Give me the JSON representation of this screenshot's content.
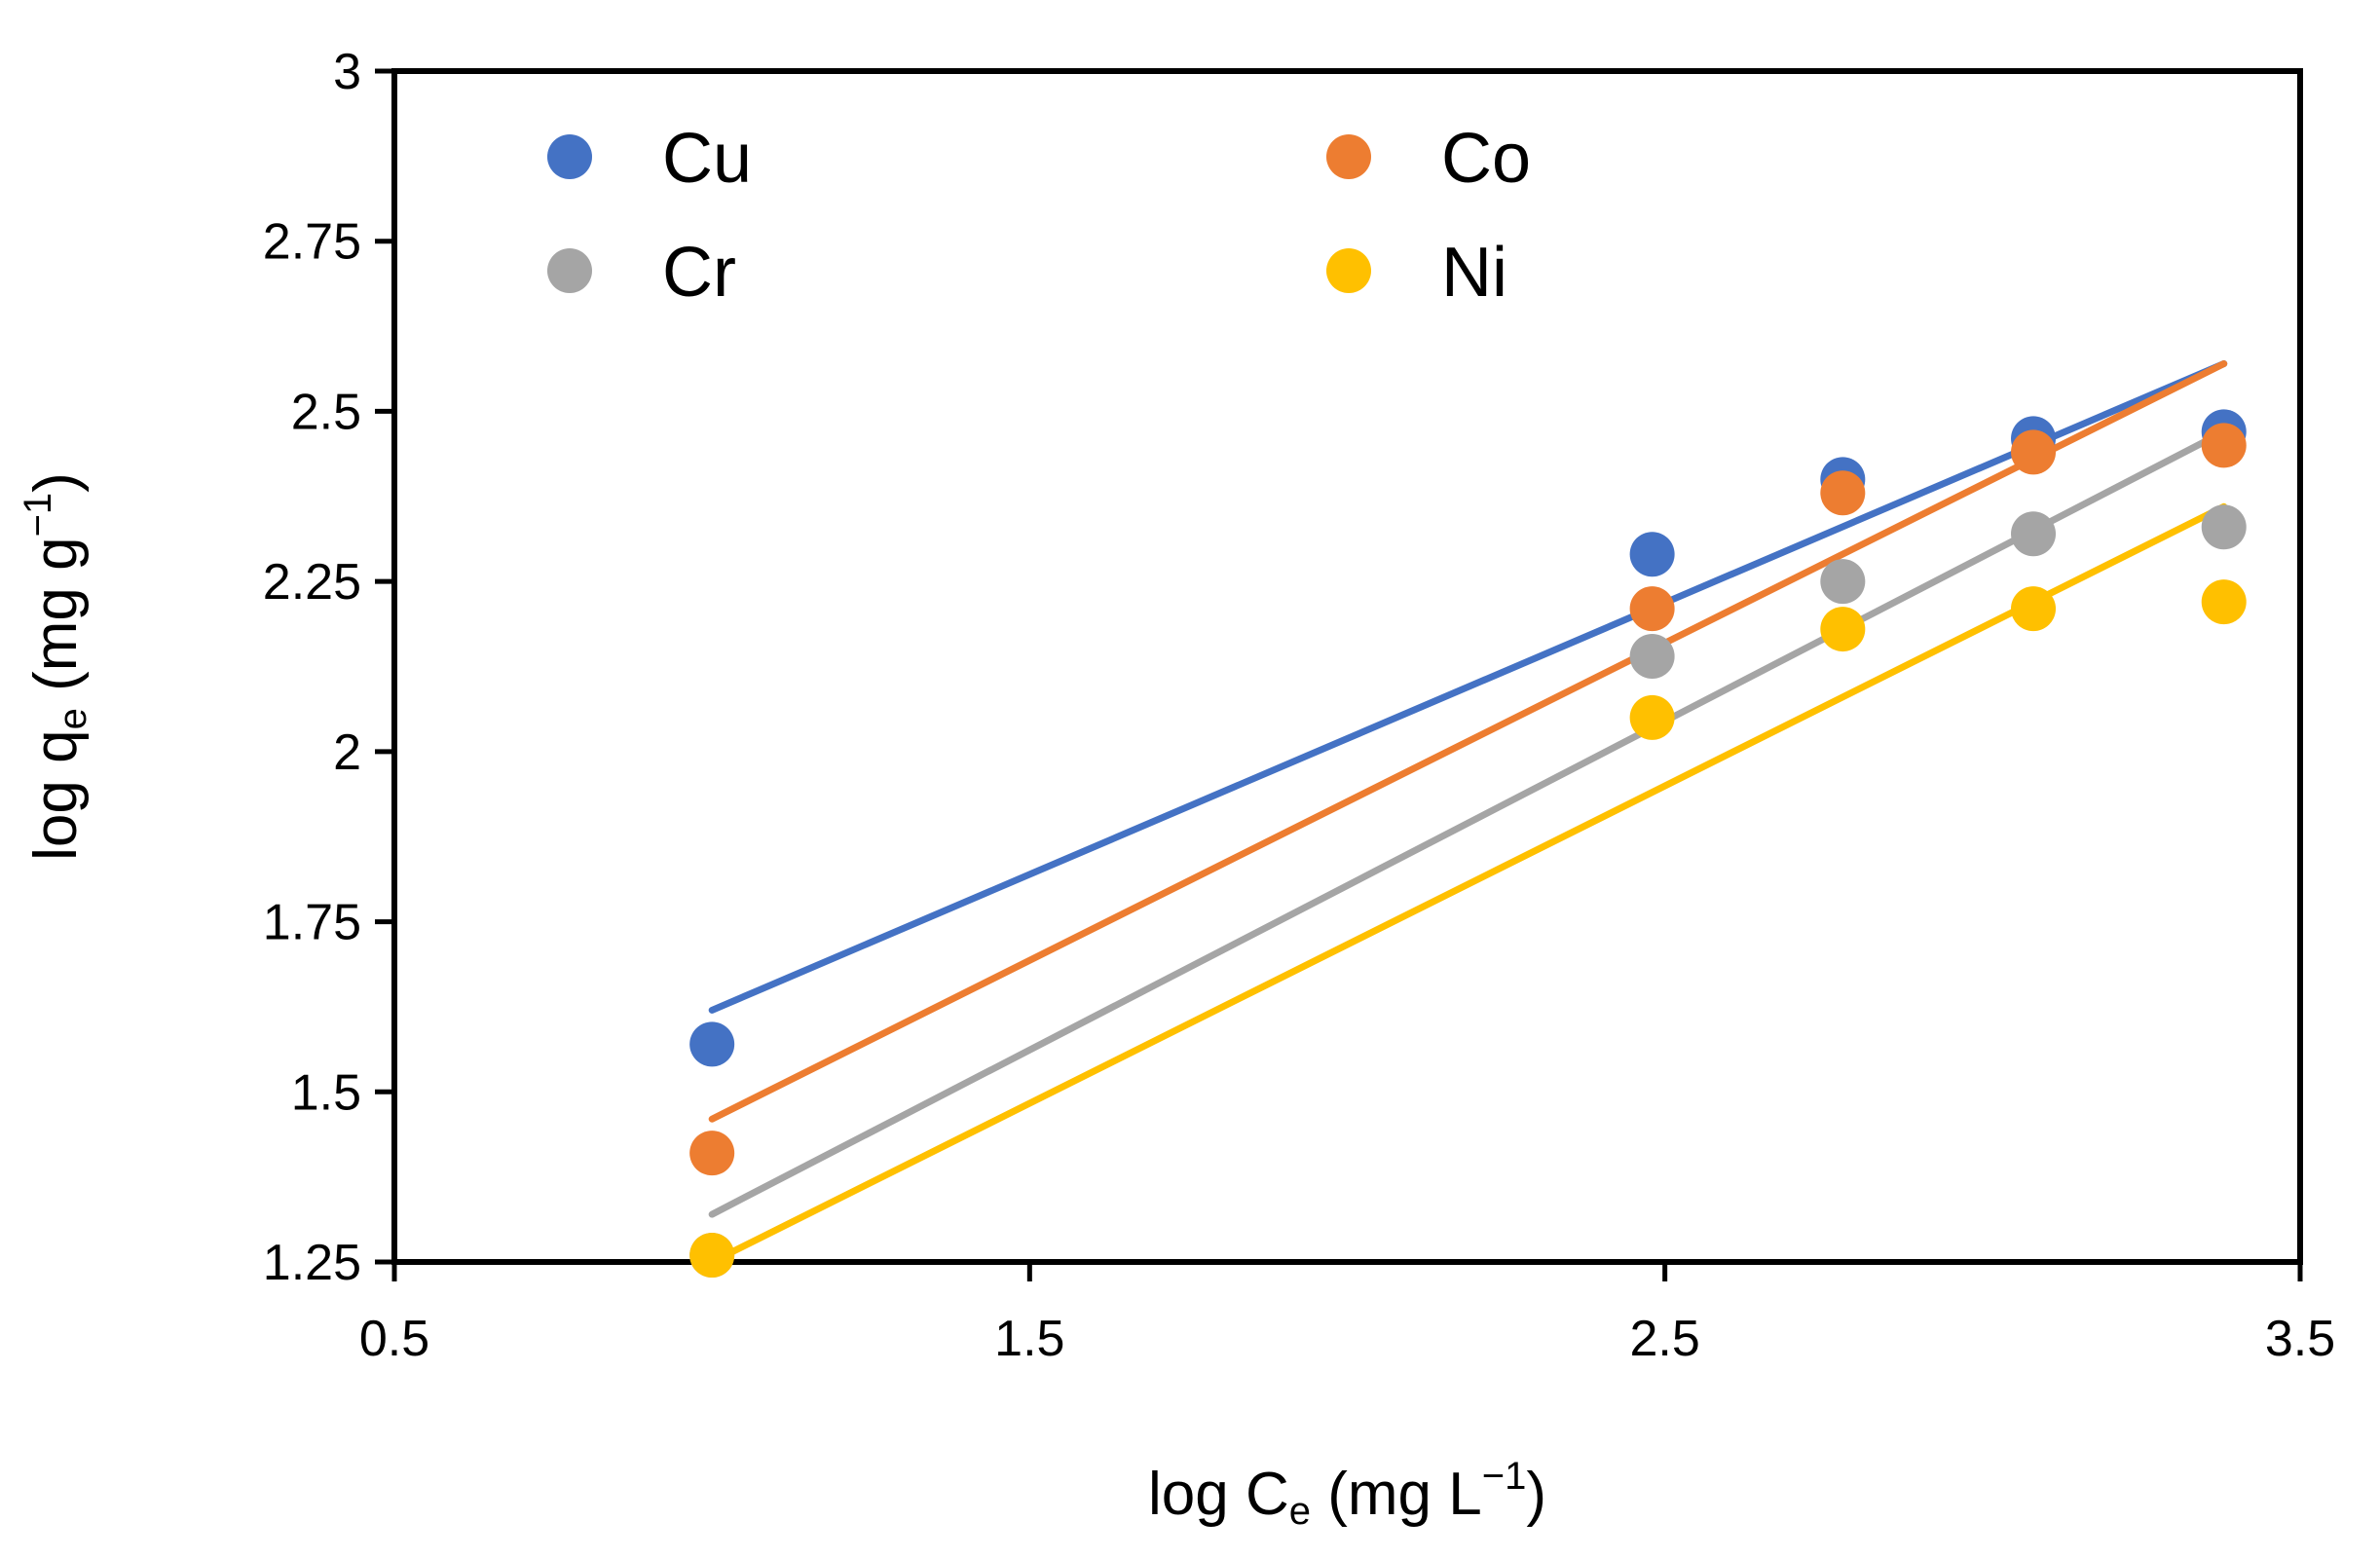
{
  "chart_data": {
    "type": "scatter",
    "title": "",
    "xlabel": {
      "base": "log C",
      "sub": "e",
      "rest": " (mg L",
      "sup": "−1",
      "end": ")"
    },
    "ylabel": {
      "base": "log q",
      "sub": "e",
      "rest": " (mg g",
      "sup": "−1",
      "end": ")"
    },
    "xlim": [
      0.5,
      3.5
    ],
    "ylim": [
      1.25,
      3
    ],
    "xticks": [
      "0.5",
      "1.5",
      "2.5",
      "3.5"
    ],
    "yticks": [
      "1.25",
      "1.5",
      "1.75",
      "2",
      "2.25",
      "2.5",
      "2.75",
      "3"
    ],
    "grid": false,
    "legend_position": "top",
    "x": [
      1.0,
      2.48,
      2.78,
      3.08,
      3.38
    ],
    "series": [
      {
        "name": "Cu",
        "color": "#4472C4",
        "values": [
          1.57,
          2.29,
          2.4,
          2.46,
          2.47
        ],
        "fit": [
          [
            1.0,
            1.62
          ],
          [
            3.38,
            2.57
          ]
        ]
      },
      {
        "name": "Co",
        "color": "#ED7D31",
        "values": [
          1.41,
          2.21,
          2.38,
          2.44,
          2.45
        ],
        "fit": [
          [
            1.0,
            1.46
          ],
          [
            3.38,
            2.57
          ]
        ]
      },
      {
        "name": "Cr",
        "color": "#A5A5A5",
        "values": [
          1.26,
          2.14,
          2.25,
          2.32,
          2.33
        ],
        "fit": [
          [
            1.0,
            1.32
          ],
          [
            3.38,
            2.47
          ]
        ]
      },
      {
        "name": "Ni",
        "color": "#FFC000",
        "values": [
          1.26,
          2.05,
          2.18,
          2.21,
          2.22
        ],
        "fit": [
          [
            1.0,
            1.25
          ],
          [
            3.38,
            2.36
          ]
        ]
      }
    ]
  }
}
